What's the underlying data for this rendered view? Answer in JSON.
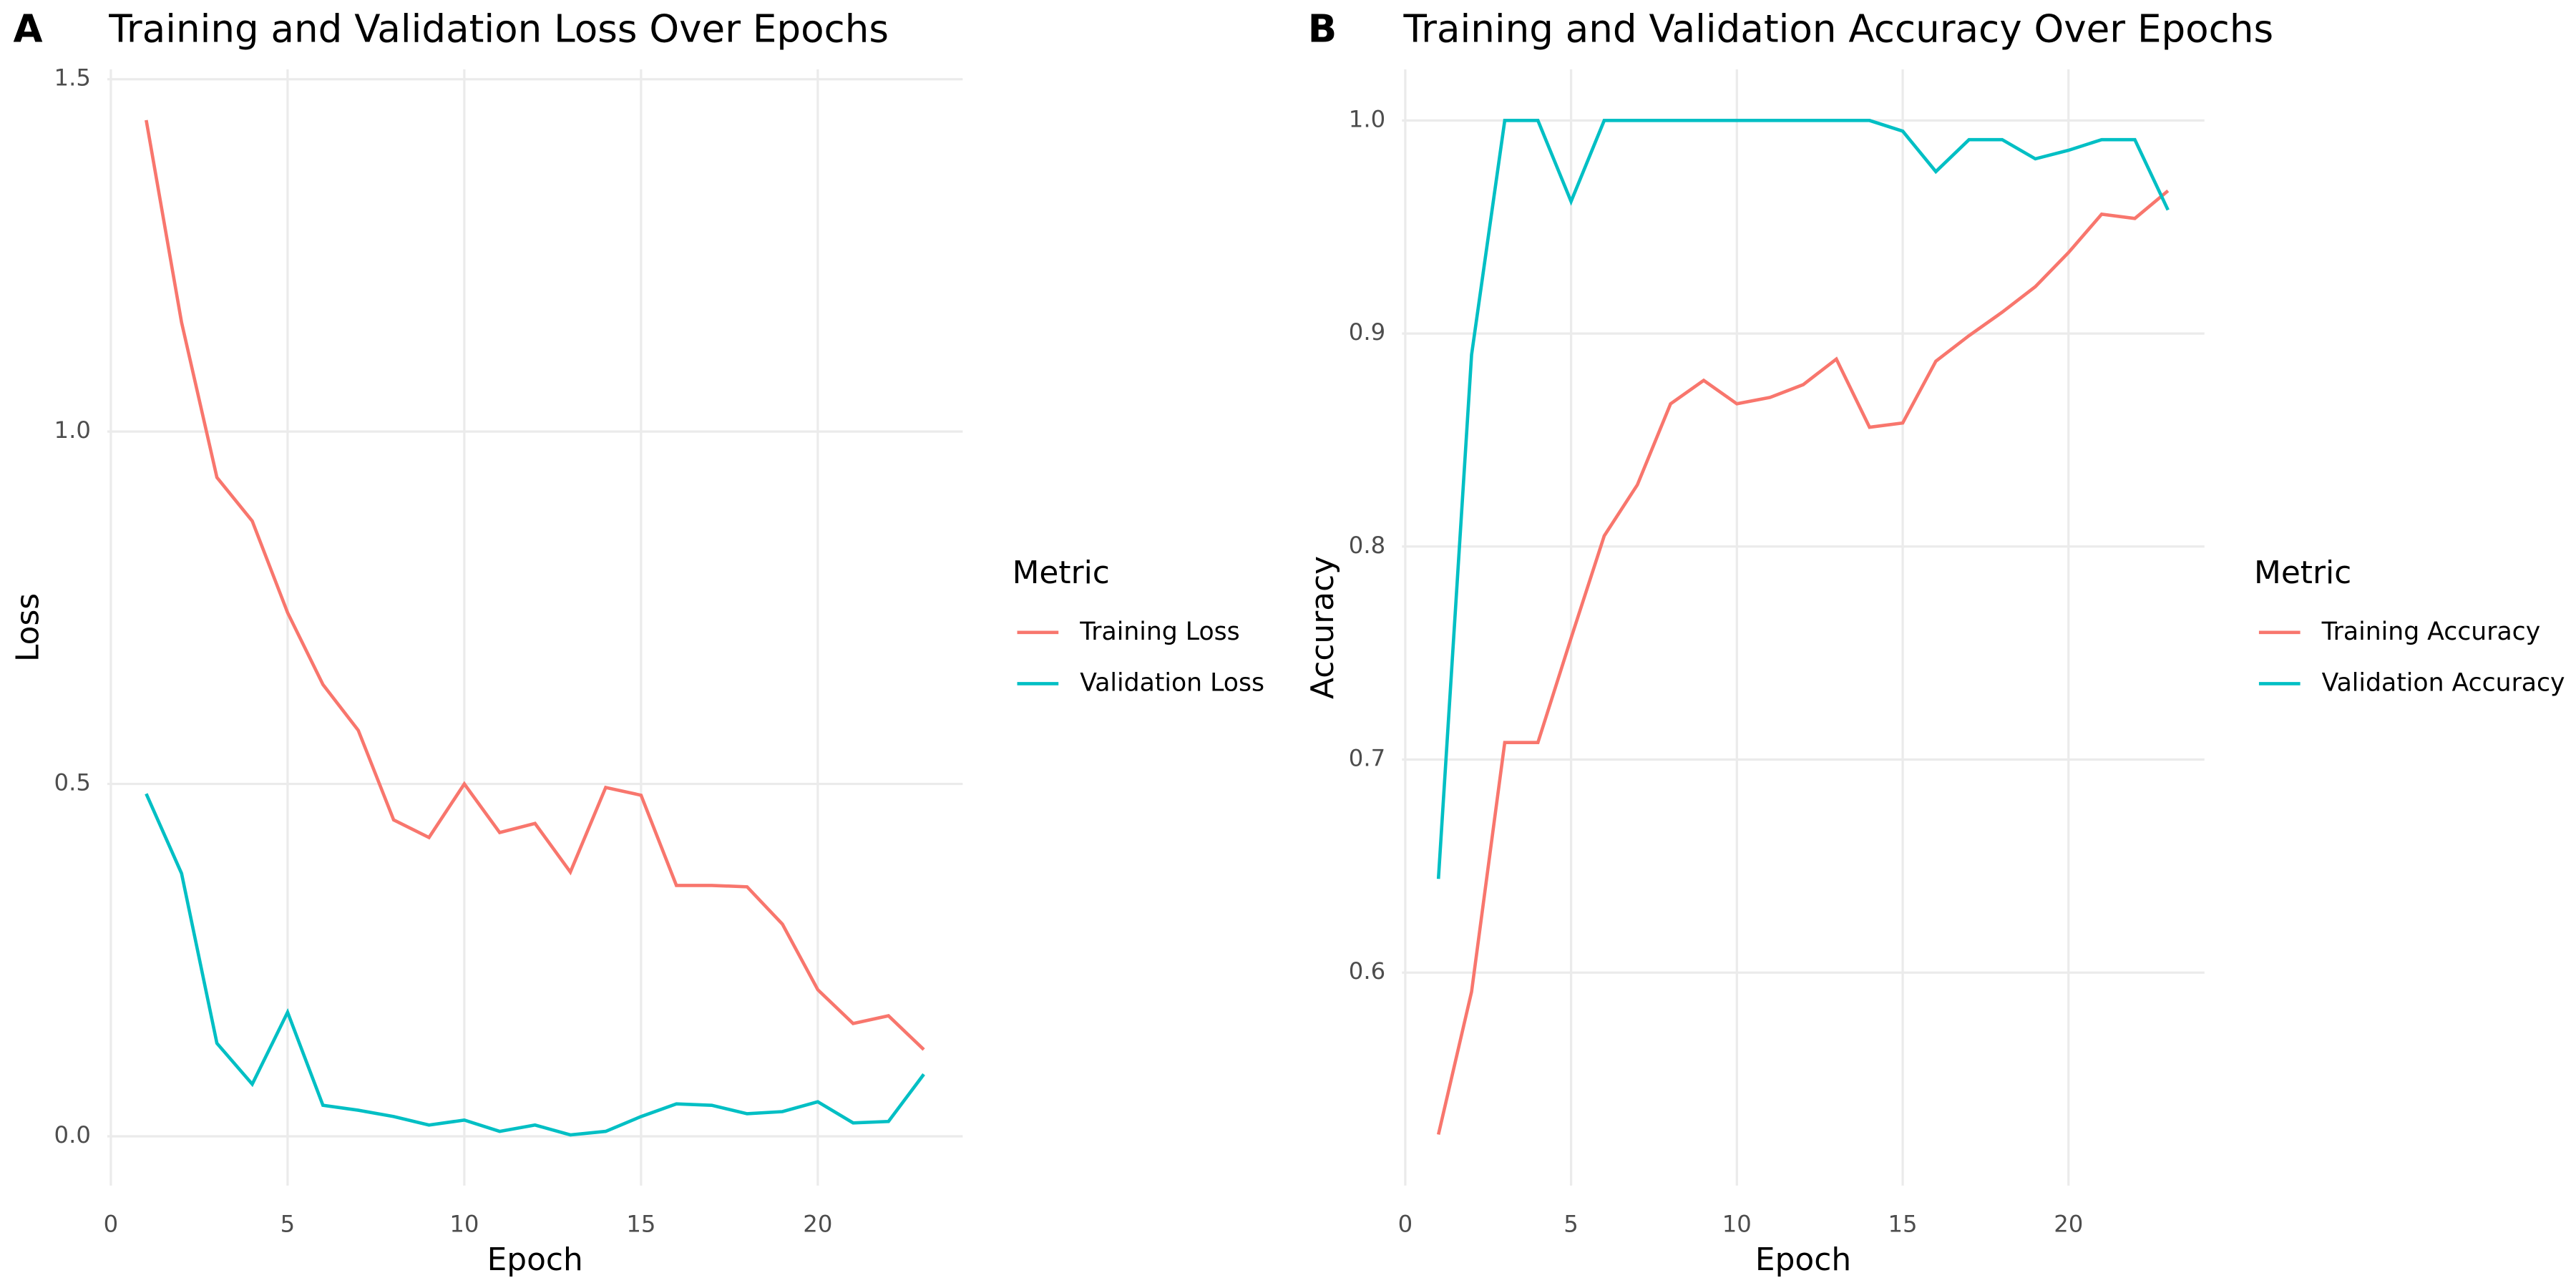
{
  "chart_data": [
    {
      "type": "line",
      "panel_label": "A",
      "title": "Training and Validation Loss Over Epochs",
      "x_label": "Epoch",
      "y_label": "Loss",
      "legend_title": "Metric",
      "x": [
        1,
        2,
        3,
        4,
        5,
        6,
        7,
        8,
        9,
        10,
        11,
        12,
        13,
        14,
        15,
        16,
        17,
        18,
        19,
        20,
        21,
        22,
        23
      ],
      "series": [
        {
          "name": "Training Loss",
          "color": "#F8766D",
          "values": [
            1.442,
            1.155,
            0.935,
            0.873,
            0.743,
            0.641,
            0.576,
            0.449,
            0.424,
            0.5,
            0.431,
            0.444,
            0.375,
            0.495,
            0.484,
            0.356,
            0.356,
            0.354,
            0.301,
            0.208,
            0.16,
            0.171,
            0.123
          ]
        },
        {
          "name": "Validation Loss",
          "color": "#00BFC4",
          "values": [
            0.486,
            0.373,
            0.132,
            0.074,
            0.176,
            0.044,
            0.037,
            0.028,
            0.016,
            0.023,
            0.007,
            0.016,
            0.002,
            0.007,
            0.028,
            0.046,
            0.044,
            0.032,
            0.035,
            0.049,
            0.019,
            0.021,
            0.088
          ]
        }
      ],
      "xlim": [
        -0.1,
        24.1
      ],
      "ylim": [
        -0.07,
        1.514
      ],
      "xticks": [
        0,
        5,
        10,
        15,
        20
      ],
      "yticks": [
        {
          "value": 0,
          "label": "0.0"
        },
        0.5,
        {
          "value": 1,
          "label": "1.0"
        },
        1.5
      ],
      "grid": true
    },
    {
      "type": "line",
      "panel_label": "B",
      "title": "Training and Validation Accuracy Over Epochs",
      "x_label": "Epoch",
      "y_label": "Accuracy",
      "legend_title": "Metric",
      "x": [
        1,
        2,
        3,
        4,
        5,
        6,
        7,
        8,
        9,
        10,
        11,
        12,
        13,
        14,
        15,
        16,
        17,
        18,
        19,
        20,
        21,
        22,
        23
      ],
      "series": [
        {
          "name": "Training Accuracy",
          "color": "#F8766D",
          "values": [
            0.524,
            0.591,
            0.708,
            0.708,
            0.757,
            0.805,
            0.829,
            0.867,
            0.878,
            0.867,
            0.87,
            0.876,
            0.888,
            0.856,
            0.858,
            0.887,
            0.899,
            0.91,
            0.922,
            0.938,
            0.956,
            0.954,
            0.967
          ]
        },
        {
          "name": "Validation Accuracy",
          "color": "#00BFC4",
          "values": [
            0.644,
            0.89,
            1,
            1,
            0.962,
            1,
            1,
            1,
            1,
            1,
            1,
            1,
            1,
            1,
            0.995,
            0.976,
            0.991,
            0.991,
            0.982,
            0.986,
            0.991,
            0.991,
            0.958
          ]
        }
      ],
      "xlim": [
        -0.1,
        24.1
      ],
      "ylim": [
        0.5,
        1.024
      ],
      "xticks": [
        0,
        5,
        10,
        15,
        20
      ],
      "yticks": [
        0.6,
        0.7,
        0.8,
        0.9,
        {
          "value": 1,
          "label": "1.0"
        }
      ],
      "grid": true
    }
  ]
}
